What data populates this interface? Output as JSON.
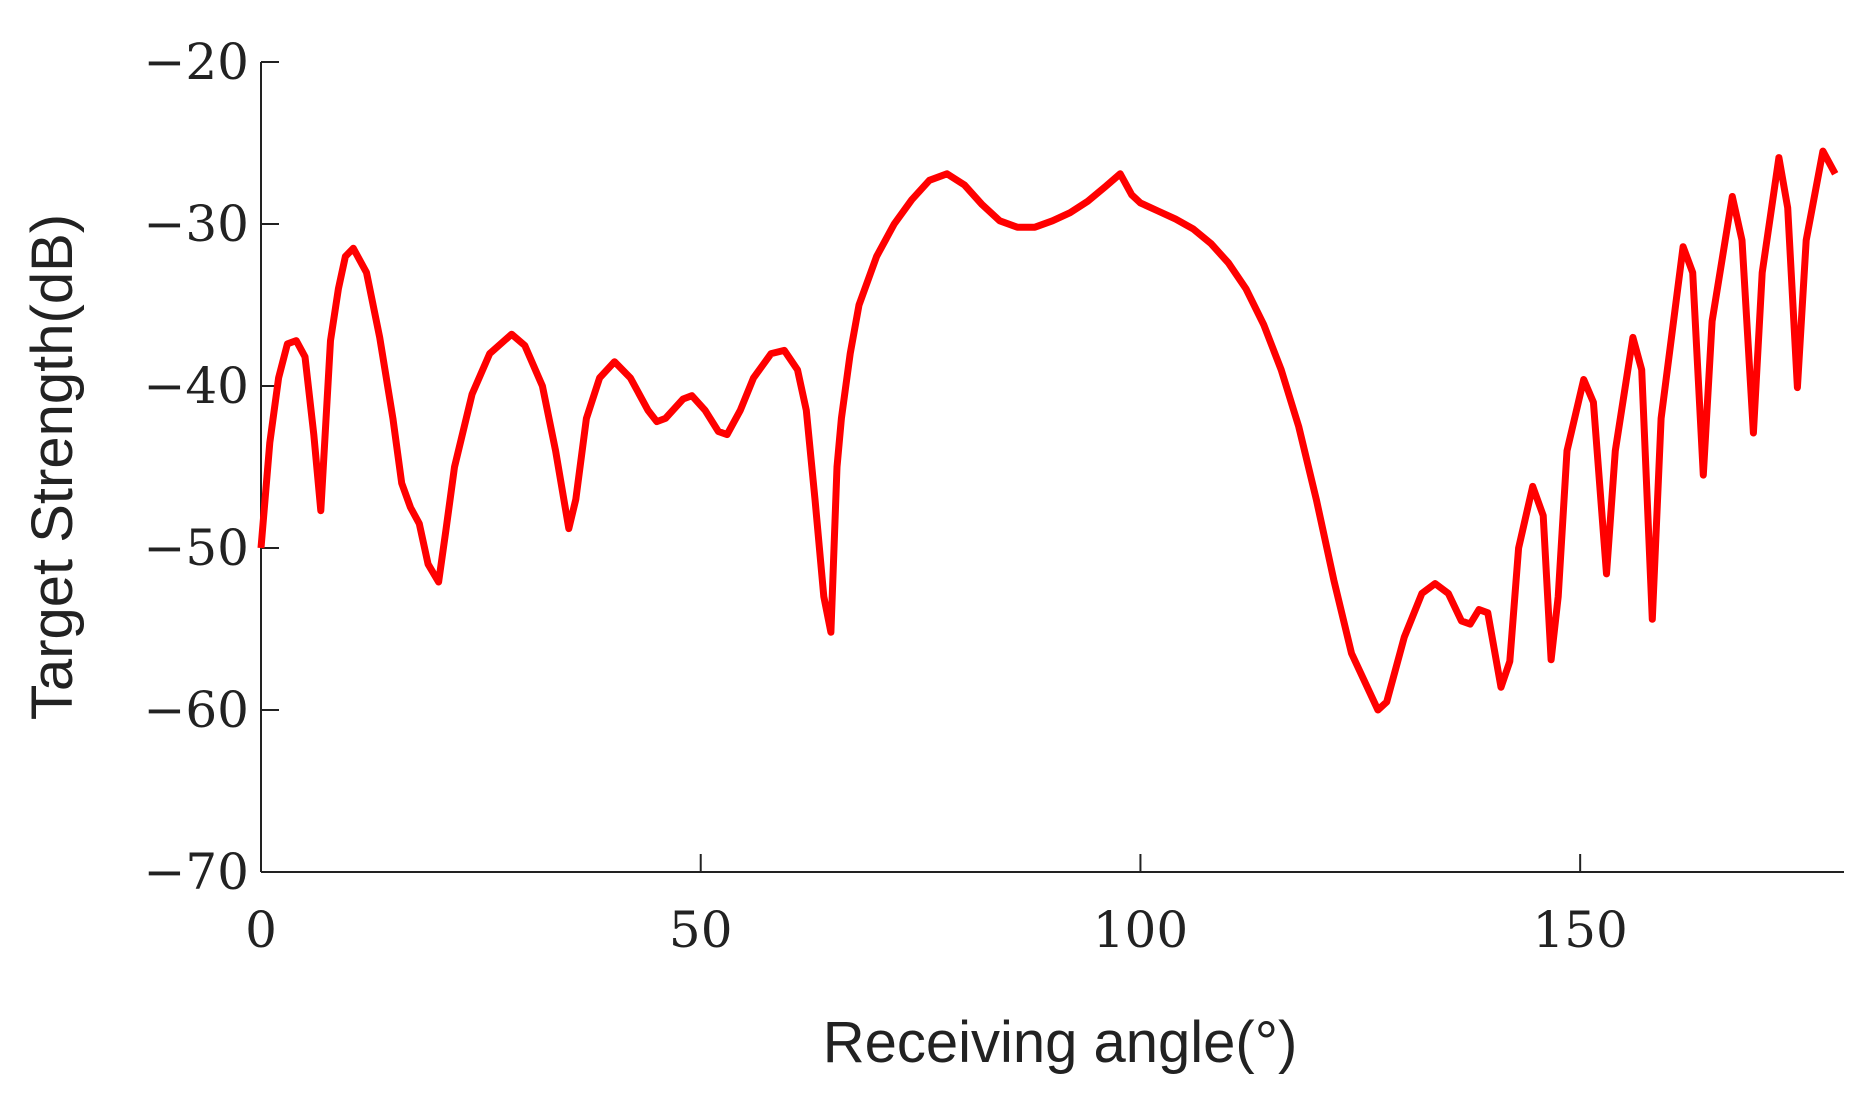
{
  "chart_data": {
    "type": "line",
    "xlabel": "Receiving angle(°)",
    "ylabel": "Target Strength(dB)",
    "xlim": [
      0,
      180
    ],
    "xticks": [
      0,
      50,
      100,
      150
    ],
    "ylim": [
      -70,
      -20
    ],
    "yticks": [
      {
        "value": -70,
        "label": "−70"
      },
      {
        "value": -60,
        "label": "−60"
      },
      {
        "value": -50,
        "label": "−50"
      },
      {
        "value": -40,
        "label": "−40"
      },
      {
        "value": -30,
        "label": "−30"
      },
      {
        "value": -20,
        "label": "−20"
      }
    ],
    "grid": false,
    "x": [
      0,
      1,
      2,
      3,
      4,
      5,
      6,
      6.8,
      7.9,
      8.8,
      9.6,
      10.5,
      12,
      13.5,
      15,
      16,
      17,
      18,
      19,
      20.2,
      21,
      22,
      24,
      26,
      28.5,
      30,
      32,
      33.5,
      35,
      35.8,
      37,
      38.5,
      40.2,
      42,
      44,
      45,
      46,
      48,
      49,
      50.5,
      52,
      53,
      54.5,
      56,
      58,
      59.5,
      61,
      62,
      63,
      64,
      64.8,
      65.5,
      66,
      67,
      68,
      70,
      72,
      74,
      76,
      78,
      80,
      82,
      84,
      86,
      88,
      90,
      92,
      94,
      96,
      97.7,
      99,
      100,
      102,
      104,
      106,
      108,
      110,
      112,
      114,
      116,
      118,
      120,
      122,
      124,
      127,
      128,
      130,
      132,
      133.5,
      135,
      136.5,
      137.5,
      138.5,
      139.5,
      141,
      142,
      143,
      144.6,
      145.8,
      146.7,
      147.5,
      148.5,
      150.4,
      151.5,
      153,
      154,
      156,
      157,
      158.2,
      159.2,
      161.7,
      162.8,
      164,
      165,
      167.3,
      168.4,
      169.7,
      170.7,
      172.6,
      173.6,
      174.7,
      175.7,
      177.6,
      179
    ],
    "series": [
      {
        "name": "Target Strength",
        "color": "#ff0000",
        "values": [
          -50,
          -43.5,
          -39.5,
          -37.4,
          -37.2,
          -38.2,
          -43,
          -47.7,
          -37.2,
          -34,
          -32,
          -31.5,
          -33,
          -37,
          -42,
          -46,
          -47.5,
          -48.5,
          -51,
          -52.1,
          -49,
          -45,
          -40.5,
          -38,
          -36.8,
          -37.5,
          -40,
          -44,
          -48.8,
          -47,
          -42,
          -39.5,
          -38.5,
          -39.5,
          -41.5,
          -42.2,
          -42,
          -40.8,
          -40.6,
          -41.5,
          -42.8,
          -43,
          -41.5,
          -39.5,
          -38,
          -37.8,
          -39,
          -41.5,
          -47,
          -53,
          -55.2,
          -45,
          -42,
          -38,
          -35,
          -32,
          -30,
          -28.5,
          -27.3,
          -26.9,
          -27.6,
          -28.8,
          -29.8,
          -30.2,
          -30.2,
          -29.8,
          -29.3,
          -28.6,
          -27.7,
          -26.9,
          -28.2,
          -28.7,
          -29.2,
          -29.7,
          -30.3,
          -31.2,
          -32.4,
          -34,
          -36.2,
          -39,
          -42.5,
          -47,
          -52,
          -56.5,
          -60,
          -59.5,
          -55.5,
          -52.8,
          -52.2,
          -52.8,
          -54.5,
          -54.7,
          -53.8,
          -54,
          -58.6,
          -57,
          -50,
          -46.2,
          -48,
          -56.9,
          -53,
          -44,
          -39.6,
          -41,
          -51.6,
          -44,
          -37,
          -39,
          -54.4,
          -42,
          -31.4,
          -33,
          -45.5,
          -36,
          -28.3,
          -31,
          -42.9,
          -33,
          -25.9,
          -29,
          -40.1,
          -31,
          -25.5,
          -26.9
        ]
      }
    ]
  }
}
